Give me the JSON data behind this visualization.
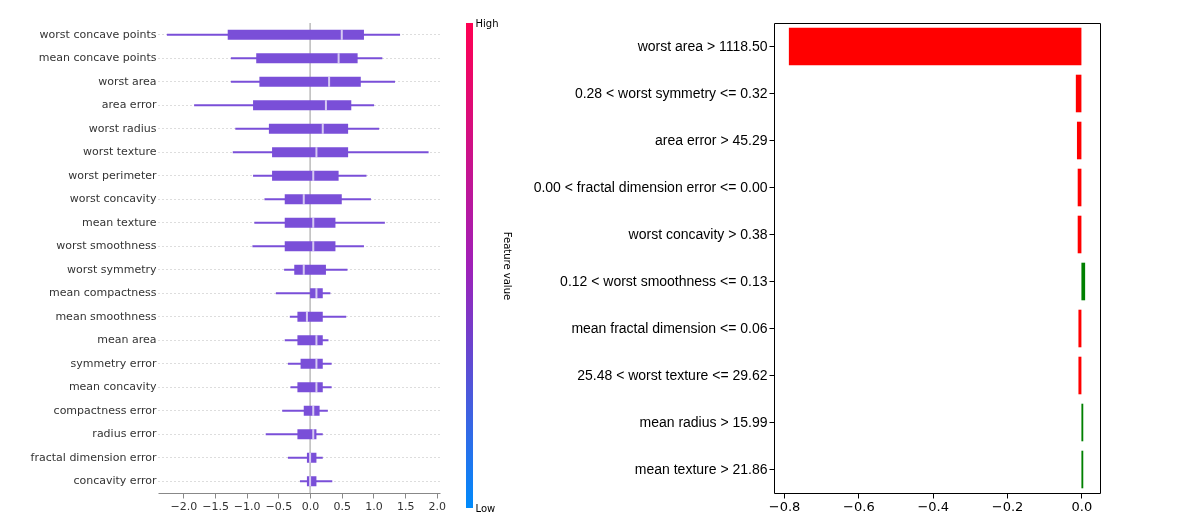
{
  "chart_data": [
    {
      "type": "box",
      "orientation": "horizontal",
      "color": "#7a4fd8",
      "categories": [
        "worst concave points",
        "mean concave points",
        "worst area",
        "area error",
        "worst radius",
        "worst texture",
        "worst perimeter",
        "worst concavity",
        "mean texture",
        "worst smoothness",
        "worst symmetry",
        "mean compactness",
        "mean smoothness",
        "mean area",
        "symmetry error",
        "mean concavity",
        "compactness error",
        "radius error",
        "fractal dimension error",
        "concavity error"
      ],
      "boxes": [
        {
          "low": -2.26,
          "q1": -1.3,
          "median": 0.5,
          "q3": 0.85,
          "high": 1.42
        },
        {
          "low": -1.25,
          "q1": -0.85,
          "median": 0.45,
          "q3": 0.75,
          "high": 1.14
        },
        {
          "low": -1.25,
          "q1": -0.8,
          "median": 0.3,
          "q3": 0.8,
          "high": 1.34
        },
        {
          "low": -1.83,
          "q1": -0.9,
          "median": 0.25,
          "q3": 0.65,
          "high": 1.01
        },
        {
          "low": -1.18,
          "q1": -0.65,
          "median": 0.2,
          "q3": 0.6,
          "high": 1.09
        },
        {
          "low": -1.22,
          "q1": -0.6,
          "median": 0.1,
          "q3": 0.6,
          "high": 1.87
        },
        {
          "low": -0.9,
          "q1": -0.6,
          "median": 0.05,
          "q3": 0.45,
          "high": 0.89
        },
        {
          "low": -0.72,
          "q1": -0.4,
          "median": -0.1,
          "q3": 0.5,
          "high": 0.96
        },
        {
          "low": -0.88,
          "q1": -0.4,
          "median": 0.05,
          "q3": 0.4,
          "high": 1.18
        },
        {
          "low": -0.91,
          "q1": -0.4,
          "median": 0.05,
          "q3": 0.4,
          "high": 0.85
        },
        {
          "low": -0.41,
          "q1": -0.25,
          "median": -0.1,
          "q3": 0.25,
          "high": 0.59
        },
        {
          "low": -0.54,
          "q1": 0,
          "median": 0.1,
          "q3": 0.2,
          "high": 0.32
        },
        {
          "low": -0.32,
          "q1": -0.2,
          "median": -0.05,
          "q3": 0.2,
          "high": 0.57
        },
        {
          "low": -0.4,
          "q1": -0.2,
          "median": 0.1,
          "q3": 0.2,
          "high": 0.29
        },
        {
          "low": -0.35,
          "q1": -0.15,
          "median": 0.1,
          "q3": 0.2,
          "high": 0.34
        },
        {
          "low": -0.31,
          "q1": -0.2,
          "median": 0.1,
          "q3": 0.2,
          "high": 0.34
        },
        {
          "low": -0.44,
          "q1": -0.1,
          "median": 0.05,
          "q3": 0.15,
          "high": 0.28
        },
        {
          "low": -0.7,
          "q1": -0.2,
          "median": 0.05,
          "q3": 0.1,
          "high": 0.2
        },
        {
          "low": -0.35,
          "q1": -0.05,
          "median": 0,
          "q3": 0.1,
          "high": 0.2
        },
        {
          "low": -0.16,
          "q1": -0.05,
          "median": 0,
          "q3": 0.1,
          "high": 0.35
        }
      ],
      "xlim": [
        -2.4,
        2.05
      ],
      "xticks": [
        {
          "value": -2,
          "label": "−2.0"
        },
        {
          "value": -1.5,
          "label": "−1.5"
        },
        {
          "value": -1,
          "label": "−1.0"
        },
        {
          "value": -0.5,
          "label": "−0.5"
        },
        {
          "value": 0,
          "label": "0.0"
        },
        {
          "value": 0.5,
          "label": "0.5"
        },
        {
          "value": 1,
          "label": "1.0"
        },
        {
          "value": 1.5,
          "label": "1.5"
        },
        {
          "value": 2,
          "label": "2.0"
        }
      ],
      "grid": "y",
      "ref_lines": [
        {
          "axis": "x",
          "value": 0
        }
      ],
      "clabel": "Feature value",
      "clim": [
        0,
        1
      ],
      "cticks": [
        {
          "value": 0,
          "label": "Low"
        },
        {
          "value": 1,
          "label": "High"
        }
      ]
    },
    {
      "type": "bar",
      "orientation": "horizontal",
      "categories": [
        "worst area > 1118.50",
        "0.28 < worst symmetry <= 0.32",
        "area error > 45.29",
        "0.00 < fractal dimension error <= 0.00",
        "worst concavity > 0.38",
        "0.12 < worst smoothness <= 0.13",
        "mean fractal dimension <= 0.06",
        "25.48 < worst texture <= 29.62",
        "mean radius > 15.99",
        "mean texture > 21.86"
      ],
      "values": [
        -0.787,
        -0.015,
        -0.012,
        -0.01,
        -0.01,
        0.01,
        -0.008,
        -0.008,
        0.005,
        0.005
      ],
      "colors": [
        "#ff0000",
        "#ff0000",
        "#ff0000",
        "#ff0000",
        "#ff0000",
        "#008000",
        "#ff0000",
        "#ff0000",
        "#008000",
        "#008000"
      ],
      "xlim": [
        -0.827,
        0.05
      ],
      "xticks": [
        {
          "value": -0.8,
          "label": "−0.8"
        },
        {
          "value": -0.6,
          "label": "−0.6"
        },
        {
          "value": -0.4,
          "label": "−0.4"
        },
        {
          "value": -0.2,
          "label": "−0.2"
        },
        {
          "value": 0,
          "label": "0.0"
        }
      ]
    }
  ]
}
